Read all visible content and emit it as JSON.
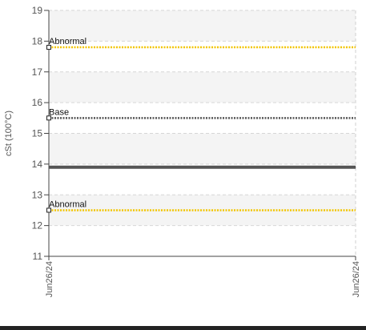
{
  "chart_data": {
    "type": "line",
    "title": "",
    "xlabel": "",
    "ylabel": "cSt (100°C)",
    "ylim": [
      11,
      19
    ],
    "y_ticks": [
      11,
      12,
      13,
      14,
      15,
      16,
      17,
      18,
      19
    ],
    "x": [
      "Jun26/24",
      "Jun26/24"
    ],
    "series": [
      {
        "values": [
          13.9,
          13.9
        ],
        "color": "#555555"
      }
    ],
    "reference_lines": [
      {
        "label": "Abnormal",
        "value": 17.8,
        "color": "#f2c500",
        "style": "dotted"
      },
      {
        "label": "Base",
        "value": 15.5,
        "color": "#555555",
        "style": "dotted"
      },
      {
        "label": "Abnormal",
        "value": 12.5,
        "color": "#f2c500",
        "style": "dotted"
      }
    ],
    "grid": true,
    "legend": "none"
  }
}
